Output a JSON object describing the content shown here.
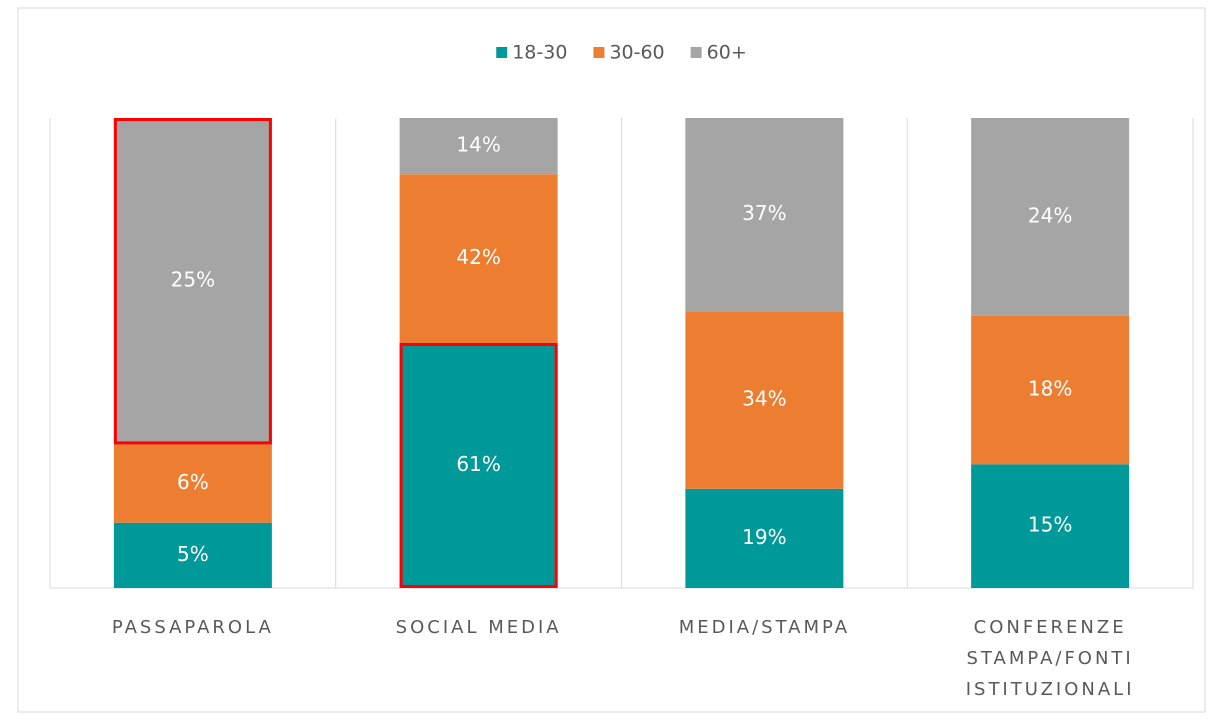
{
  "chart_data": {
    "type": "bar",
    "stacking": "percent",
    "categories": [
      [
        "PASSAPAROLA"
      ],
      [
        "SOCIAL MEDIA"
      ],
      [
        "MEDIA/STAMPA"
      ],
      [
        "CONFERENZE",
        "STAMPA/FONTI",
        "ISTITUZIONALI"
      ]
    ],
    "series": [
      {
        "name": "18-30",
        "color": "#009999",
        "values": [
          5,
          61,
          19,
          15
        ],
        "value_labels": [
          "5%",
          "61%",
          "19%",
          "15%"
        ]
      },
      {
        "name": "30-60",
        "color": "#ed7d31",
        "values": [
          6,
          42,
          34,
          18
        ],
        "value_labels": [
          "6%",
          "42%",
          "34%",
          "18%"
        ]
      },
      {
        "name": "60+",
        "color": "#a5a5a5",
        "values": [
          25,
          14,
          37,
          24
        ],
        "value_labels": [
          "25%",
          "14%",
          "37%",
          "24%"
        ]
      }
    ],
    "legend": "top",
    "grid": true,
    "highlight_color": "#ff0000",
    "highlights": [
      [
        2,
        0
      ],
      [
        0,
        1
      ]
    ]
  }
}
